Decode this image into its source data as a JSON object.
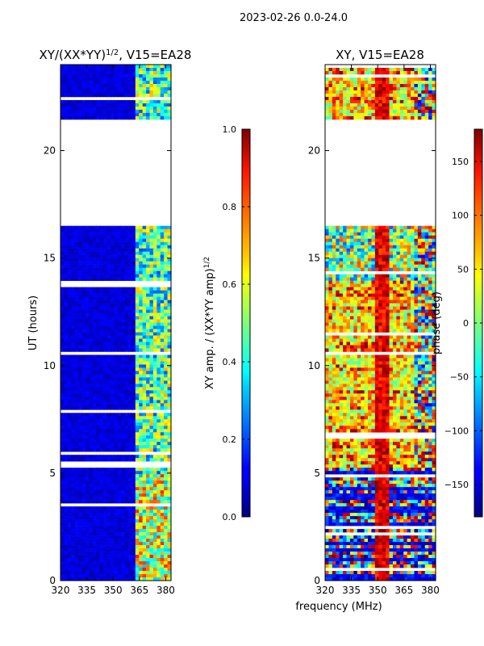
{
  "suptitle": "2023-02-26 0.0-24.0",
  "chart_data": [
    {
      "type": "heatmap",
      "title": "XY/(XX*YY)",
      "title_sup": "1/2",
      "title_suffix": ", V15=EA28",
      "xlabel": "",
      "ylabel": "UT (hours)",
      "xlim": [
        320,
        383
      ],
      "ylim": [
        0,
        24
      ],
      "xticks": [
        320,
        335,
        350,
        365,
        380
      ],
      "yticks": [
        0,
        5,
        10,
        15,
        20
      ],
      "gaps_hours": [
        [
          16.5,
          21.5
        ],
        [
          22.3,
          22.5
        ],
        [
          5.2,
          5.5
        ],
        [
          13.6,
          13.9
        ]
      ],
      "colorbar": {
        "label": "XY amp. / (XX*YY amp)",
        "label_sup": "1/2",
        "range": [
          0.0,
          1.0
        ],
        "ticks": [
          "0.0",
          "0.2",
          "0.4",
          "0.6",
          "0.8",
          "1.0"
        ],
        "colormap": "jet"
      }
    },
    {
      "type": "heatmap",
      "title": "XY, V15=EA28",
      "xlabel": "frequency (MHz)",
      "ylabel": "",
      "xlim": [
        320,
        383
      ],
      "ylim": [
        0,
        24
      ],
      "xticks": [
        320,
        335,
        350,
        365,
        380
      ],
      "yticks": [
        0,
        5,
        10,
        15,
        20
      ],
      "gaps_hours": [
        [
          16.5,
          21.5
        ]
      ],
      "colorbar": {
        "label": "phase (deg)",
        "range": [
          -180,
          180
        ],
        "ticks": [
          "−150",
          "−100",
          "−50",
          "0",
          "50",
          "100",
          "150"
        ],
        "colormap": "jet"
      }
    }
  ]
}
